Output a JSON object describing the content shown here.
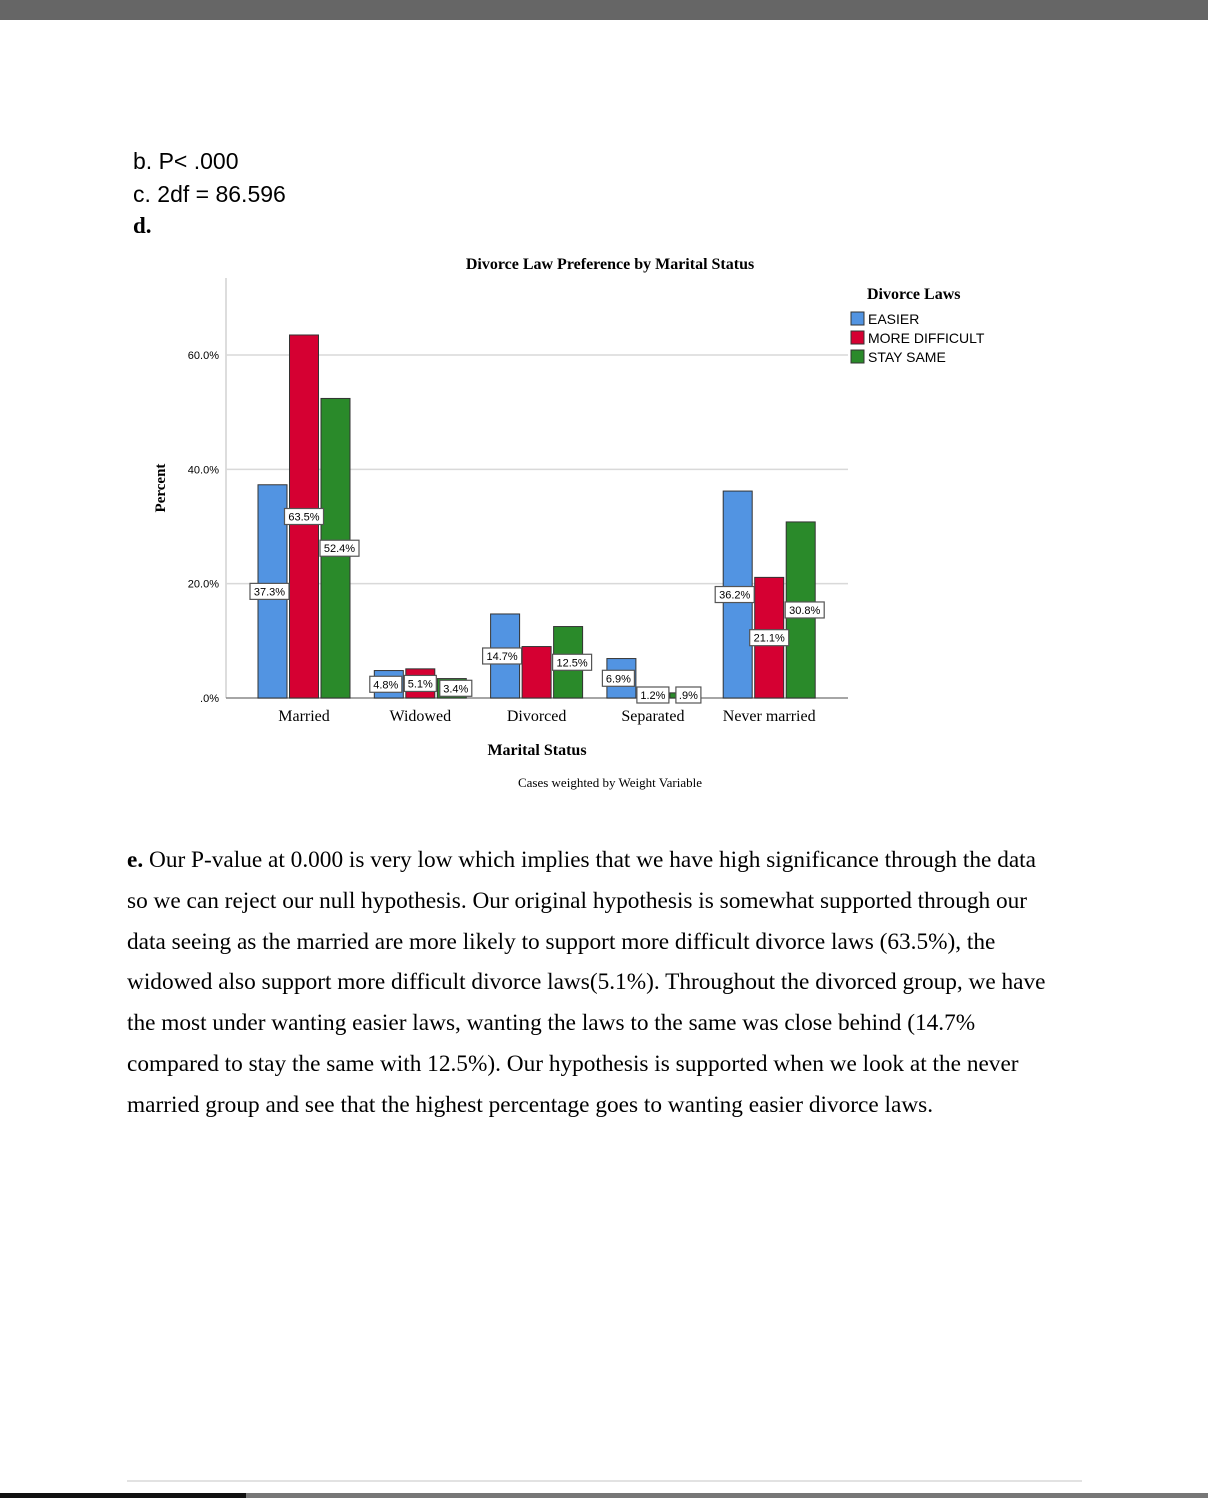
{
  "answers": {
    "b": "b. P< .000",
    "c": "c. 2df = 86.596",
    "d": "d."
  },
  "chart_data": {
    "type": "bar",
    "title": "Divorce Law Preference by Marital Status",
    "xlabel": "Marital Status",
    "ylabel": "Percent",
    "footnote": "Cases weighted by Weight Variable",
    "categories": [
      "Married",
      "Widowed",
      "Divorced",
      "Separated",
      "Never married"
    ],
    "yticks": [
      ".0%",
      "20.0%",
      "40.0%",
      "60.0%"
    ],
    "ylim": [
      0,
      70
    ],
    "grid": true,
    "legend_title": "Divorce Laws",
    "legend_position": "right",
    "series": [
      {
        "name": "EASIER",
        "color": "#5294e2",
        "values": [
          37.3,
          4.8,
          14.7,
          6.9,
          36.2
        ],
        "labels": [
          "37.3%",
          "4.8%",
          "14.7%",
          "6.9%",
          "36.2%"
        ]
      },
      {
        "name": "MORE DIFFICULT",
        "color": "#d50032",
        "values": [
          63.5,
          5.1,
          9.0,
          1.2,
          21.1
        ],
        "labels": [
          "63.5%",
          "5.1%",
          "",
          "1.2%",
          "21.1%"
        ]
      },
      {
        "name": "STAY SAME",
        "color": "#2a8a2a",
        "values": [
          52.4,
          3.4,
          12.5,
          0.9,
          30.8
        ],
        "labels": [
          "52.4%",
          "3.4%",
          "12.5%",
          ".9%",
          "30.8%"
        ]
      }
    ]
  },
  "paragraph": {
    "label": "e.",
    "text": " Our P-value at 0.000 is very low which implies that we have high significance through the data so we can reject our null hypothesis. Our original hypothesis is somewhat supported through our data seeing as the married are more likely to support more difficult divorce laws (63.5%), the widowed also support more difficult divorce laws(5.1%). Throughout the divorced group, we have the most under wanting easier laws, wanting the laws to the same was close behind (14.7% compared to stay the same with 12.5%). Our hypothesis is supported when we look at the never married group and see that the highest percentage goes to wanting easier divorce laws."
  }
}
